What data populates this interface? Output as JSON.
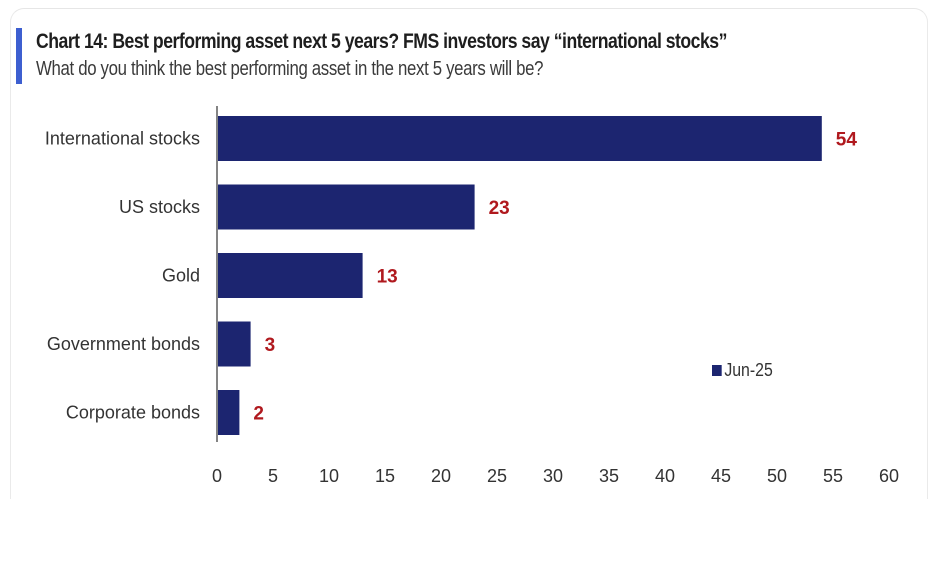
{
  "chart_data": {
    "type": "bar",
    "orientation": "horizontal",
    "title": "Chart 14: Best performing asset next 5 years? FMS investors say “international stocks”",
    "subtitle": "What do you think the best performing asset in the next 5 years will be?",
    "categories": [
      "International stocks",
      "US stocks",
      "Gold",
      "Government bonds",
      "Corporate bonds"
    ],
    "series": [
      {
        "name": "Jun-25",
        "values": [
          54,
          23,
          13,
          3,
          2
        ]
      }
    ],
    "data_labels": [
      "54",
      "23",
      "13",
      "3",
      "2"
    ],
    "xlim": [
      0,
      60
    ],
    "xticks": [
      0,
      5,
      10,
      15,
      20,
      25,
      30,
      35,
      40,
      45,
      50,
      55,
      60
    ],
    "xlabel": "",
    "ylabel": "",
    "grid": false,
    "legend_position": "right",
    "colors": {
      "bar": "#1c2570",
      "data_label": "#b0191e",
      "accent": "#3d5fd0"
    }
  }
}
